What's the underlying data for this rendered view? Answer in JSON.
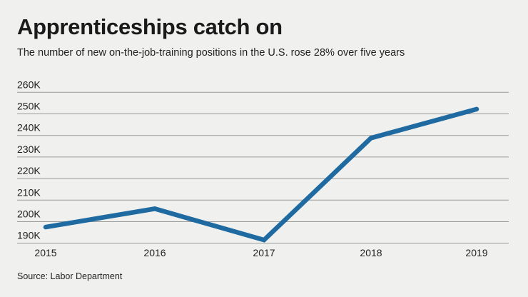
{
  "chart_data": {
    "type": "line",
    "title": "Apprenticeships catch on",
    "subtitle": "The number of new on-the-job-training positions in the U.S. rose 28% over five years",
    "source": "Source: Labor Department",
    "categories": [
      "2015",
      "2016",
      "2017",
      "2018",
      "2019"
    ],
    "values": [
      197500,
      206000,
      191500,
      238800,
      252200
    ],
    "ylim": [
      190000,
      260000
    ],
    "yticks": [
      190000,
      200000,
      210000,
      220000,
      230000,
      240000,
      250000,
      260000
    ],
    "ytick_labels": [
      "190K",
      "200K",
      "210K",
      "220K",
      "230K",
      "240K",
      "250K",
      "260K"
    ],
    "grid": "horizontal",
    "line_color": "#1f6aa0",
    "grid_color": "#9a9a9a"
  }
}
